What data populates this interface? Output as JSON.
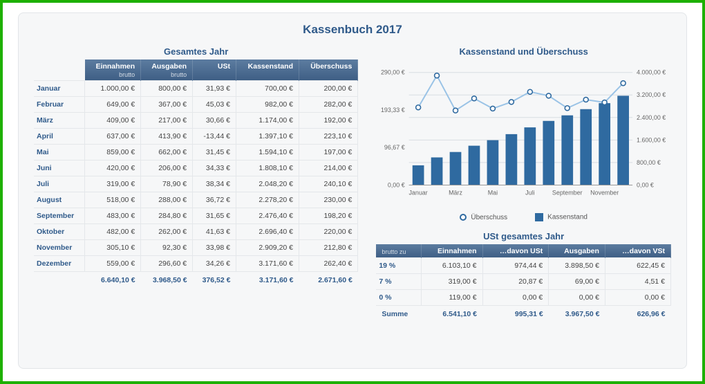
{
  "title": "Kassenbuch 2017",
  "left_table": {
    "section_title": "Gesamtes Jahr",
    "headers": [
      {
        "label": "Einnahmen",
        "sub": "brutto"
      },
      {
        "label": "Ausgaben",
        "sub": "brutto"
      },
      {
        "label": "USt",
        "sub": ""
      },
      {
        "label": "Kassenstand",
        "sub": ""
      },
      {
        "label": "Überschuss",
        "sub": ""
      }
    ],
    "months": [
      "Januar",
      "Februar",
      "März",
      "April",
      "Mai",
      "Juni",
      "Juli",
      "August",
      "September",
      "Oktober",
      "November",
      "Dezember"
    ],
    "rows": [
      [
        "1.000,00 €",
        "800,00 €",
        "31,93 €",
        "700,00 €",
        "200,00 €"
      ],
      [
        "649,00 €",
        "367,00 €",
        "45,03 €",
        "982,00 €",
        "282,00 €"
      ],
      [
        "409,00 €",
        "217,00 €",
        "30,66 €",
        "1.174,00 €",
        "192,00 €"
      ],
      [
        "637,00 €",
        "413,90 €",
        "-13,44 €",
        "1.397,10 €",
        "223,10 €"
      ],
      [
        "859,00 €",
        "662,00 €",
        "31,45 €",
        "1.594,10 €",
        "197,00 €"
      ],
      [
        "420,00 €",
        "206,00 €",
        "34,33 €",
        "1.808,10 €",
        "214,00 €"
      ],
      [
        "319,00 €",
        "78,90 €",
        "38,34 €",
        "2.048,20 €",
        "240,10 €"
      ],
      [
        "518,00 €",
        "288,00 €",
        "36,72 €",
        "2.278,20 €",
        "230,00 €"
      ],
      [
        "483,00 €",
        "284,80 €",
        "31,65 €",
        "2.476,40 €",
        "198,20 €"
      ],
      [
        "482,00 €",
        "262,00 €",
        "41,63 €",
        "2.696,40 €",
        "220,00 €"
      ],
      [
        "305,10 €",
        "92,30 €",
        "33,98 €",
        "2.909,20 €",
        "212,80 €"
      ],
      [
        "559,00 €",
        "296,60 €",
        "34,26 €",
        "3.171,60 €",
        "262,40 €"
      ]
    ],
    "totals": [
      "6.640,10 €",
      "3.968,50 €",
      "376,52 €",
      "3.171,60 €",
      "2.671,60 €"
    ]
  },
  "chart": {
    "title": "Kassenstand und Überschuss",
    "x_labels_shown": [
      "Januar",
      "März",
      "Mai",
      "Juli",
      "September",
      "November"
    ],
    "left_axis": {
      "min": 0,
      "max": 290,
      "ticks": [
        "0,00 €",
        "96,67 €",
        "193,33 €",
        "290,00 €"
      ]
    },
    "right_axis": {
      "min": 0,
      "max": 4000,
      "ticks": [
        "0,00 €",
        "800,00 €",
        "1.600,00 €",
        "2.400,00 €",
        "3.200,00 €",
        "4.000,00 €"
      ]
    },
    "bars_values": [
      700,
      982,
      1174,
      1397.1,
      1594.1,
      1808.1,
      2048.2,
      2278.2,
      2476.4,
      2696.4,
      2909.2,
      3171.6
    ],
    "line_values": [
      200,
      282,
      192,
      223.1,
      197,
      214,
      240.1,
      230,
      198.2,
      220,
      212.8,
      262.4
    ],
    "bar_color": "#2f6aa0",
    "line_color": "#9ac3e6",
    "marker_border_color": "#2f6aa0",
    "marker_fill_color": "#ffffff",
    "background_color": "#f6f7f8",
    "grid_color": "#d8dde2",
    "legend": {
      "line": "Überschuss",
      "bar": "Kassenstand"
    }
  },
  "ust_table": {
    "section_title": "USt gesamtes Jahr",
    "header_left_sub": "brutto zu",
    "headers": [
      "Einnahmen",
      "…davon USt",
      "Ausgaben",
      "…davon VSt"
    ],
    "rates": [
      "19 %",
      "7 %",
      "0 %"
    ],
    "rows": [
      [
        "6.103,10 €",
        "974,44 €",
        "3.898,50 €",
        "622,45 €"
      ],
      [
        "319,00 €",
        "20,87 €",
        "69,00 €",
        "4,51 €"
      ],
      [
        "119,00 €",
        "0,00 €",
        "0,00 €",
        "0,00 €"
      ]
    ],
    "sum_label": "Summe",
    "totals": [
      "6.541,10 €",
      "995,31 €",
      "3.967,50 €",
      "626,96 €"
    ]
  }
}
